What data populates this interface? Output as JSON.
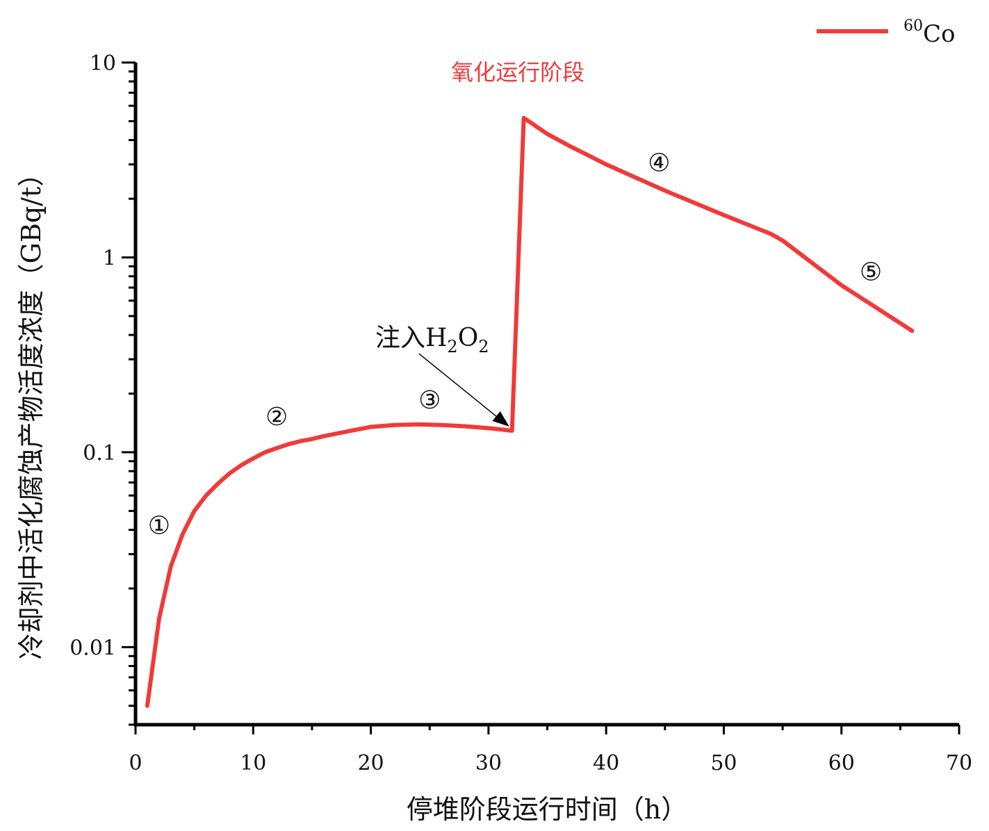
{
  "chart_data": {
    "type": "line",
    "xlabel": "停堆阶段运行时间（h）",
    "ylabel": "冷却剂中活化腐蚀产物活度浓度（GBq/t）",
    "xlim": [
      0,
      70
    ],
    "ylim": [
      0.004,
      10
    ],
    "yscale": "log",
    "xticks": [
      0,
      10,
      20,
      30,
      40,
      50,
      60,
      70
    ],
    "xtick_labels": [
      "0",
      "10",
      "20",
      "30",
      "40",
      "50",
      "60",
      "70"
    ],
    "yticks": [
      0.01,
      0.1,
      1,
      10
    ],
    "ytick_labels": [
      "0.01",
      "0.1",
      "1",
      "10"
    ],
    "grid": false,
    "legend_position": "top-right",
    "series": [
      {
        "name": "60Co",
        "name_sup": "60",
        "name_main": "Co",
        "color": "#f03a3a",
        "x": [
          1,
          2,
          3,
          4,
          5,
          6,
          7,
          8,
          9,
          10,
          11,
          12,
          13,
          14,
          15,
          16,
          18,
          20,
          22,
          24,
          26,
          28,
          30,
          31,
          32,
          33,
          35,
          37,
          40,
          45,
          50,
          54,
          55,
          60,
          66
        ],
        "y": [
          0.005,
          0.014,
          0.026,
          0.038,
          0.05,
          0.06,
          0.069,
          0.078,
          0.086,
          0.093,
          0.1,
          0.105,
          0.11,
          0.114,
          0.117,
          0.121,
          0.128,
          0.135,
          0.138,
          0.139,
          0.138,
          0.136,
          0.133,
          0.131,
          0.129,
          5.2,
          4.3,
          3.7,
          3.0,
          2.2,
          1.65,
          1.32,
          1.22,
          0.72,
          0.42
        ]
      }
    ],
    "annotations": {
      "phase_label": "氧化运行阶段",
      "phase_color": "#f03a3a",
      "injection_label": "注入H",
      "injection_sub1": "2",
      "injection_mid": "O",
      "injection_sub2": "2",
      "injection_x": 32,
      "injection_y": 0.129,
      "markers": [
        {
          "label": "①",
          "x": 2,
          "y": 0.042
        },
        {
          "label": "②",
          "x": 12,
          "y": 0.152
        },
        {
          "label": "③",
          "x": 25,
          "y": 0.185
        },
        {
          "label": "④",
          "x": 44.5,
          "y": 3.05
        },
        {
          "label": "⑤",
          "x": 62.5,
          "y": 0.84
        }
      ]
    }
  }
}
